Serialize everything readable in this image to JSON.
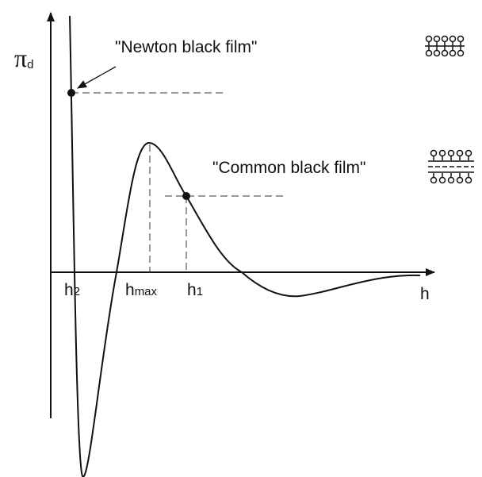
{
  "axes": {
    "y_label": {
      "main": "π",
      "sub": "d"
    },
    "x_label": "h"
  },
  "markers": [
    {
      "main": "h",
      "sub": "2"
    },
    {
      "main": "h",
      "sub": "max"
    },
    {
      "main": "h",
      "sub": "1"
    }
  ],
  "annotations": [
    "\"Newton black film\"",
    "\"Common black film\""
  ]
}
